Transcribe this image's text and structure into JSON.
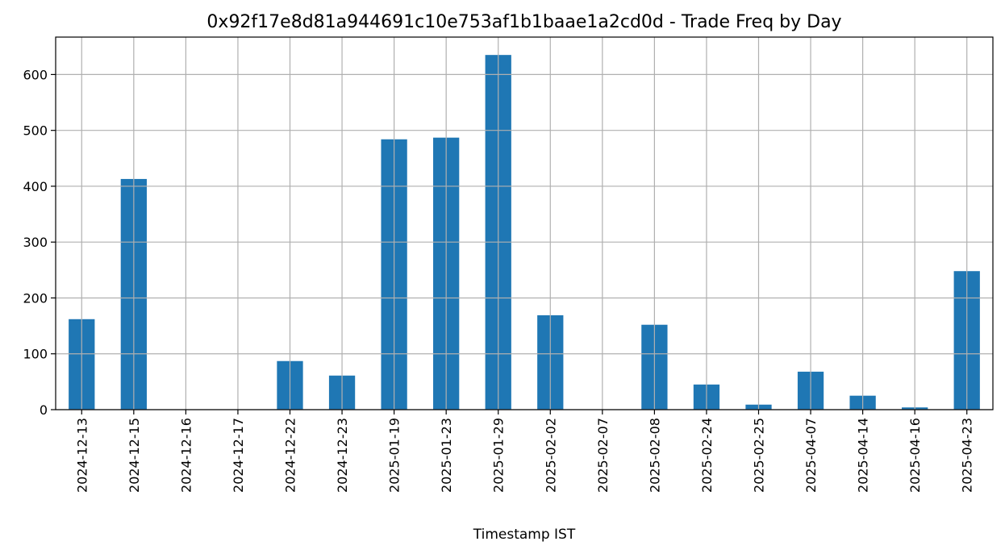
{
  "chart_data": {
    "type": "bar",
    "title": "0x92f17e8d81a944691c10e753af1b1baae1a2cd0d - Trade Freq by Day",
    "xlabel": "Timestamp IST",
    "ylabel": "",
    "categories": [
      "2024-12-13",
      "2024-12-15",
      "2024-12-16",
      "2024-12-17",
      "2024-12-22",
      "2024-12-23",
      "2025-01-19",
      "2025-01-23",
      "2025-01-29",
      "2025-02-02",
      "2025-02-07",
      "2025-02-08",
      "2025-02-24",
      "2025-02-25",
      "2025-04-07",
      "2025-04-14",
      "2025-04-16",
      "2025-04-23"
    ],
    "values": [
      162,
      413,
      0,
      0,
      87,
      61,
      484,
      487,
      635,
      169,
      0,
      152,
      45,
      9,
      68,
      25,
      4,
      248
    ],
    "ylim": [
      0,
      667
    ],
    "yticks": [
      0,
      100,
      200,
      300,
      400,
      500,
      600
    ],
    "grid": true,
    "bar_color": "#1f77b4"
  }
}
